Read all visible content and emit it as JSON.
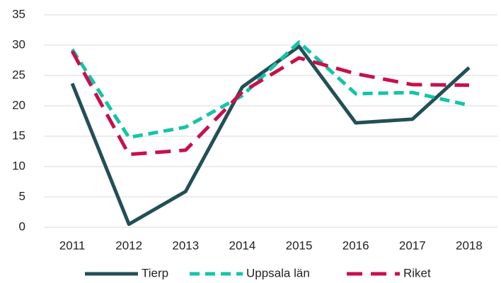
{
  "chart_data": {
    "type": "line",
    "categories": [
      "2011",
      "2012",
      "2013",
      "2014",
      "2015",
      "2016",
      "2017",
      "2018"
    ],
    "series": [
      {
        "name": "Tierp",
        "color": "#234f57",
        "line_style": "solid",
        "values": [
          23.7,
          0.5,
          5.9,
          23.1,
          29.8,
          17.2,
          17.8,
          26.3
        ]
      },
      {
        "name": "Uppsala län",
        "color": "#14c4a8",
        "line_style": "dashed",
        "values": [
          29.3,
          14.8,
          16.5,
          21.7,
          30.5,
          22.0,
          22.2,
          20.1
        ]
      },
      {
        "name": "Riket",
        "color": "#c8104a",
        "line_style": "dashed",
        "values": [
          29.0,
          12.0,
          12.7,
          22.3,
          27.9,
          25.3,
          23.5,
          23.4
        ]
      }
    ],
    "ylim": [
      0,
      35
    ],
    "yticks": [
      0,
      5,
      10,
      15,
      20,
      25,
      30,
      35
    ],
    "grid": true,
    "legend": "bottom"
  }
}
